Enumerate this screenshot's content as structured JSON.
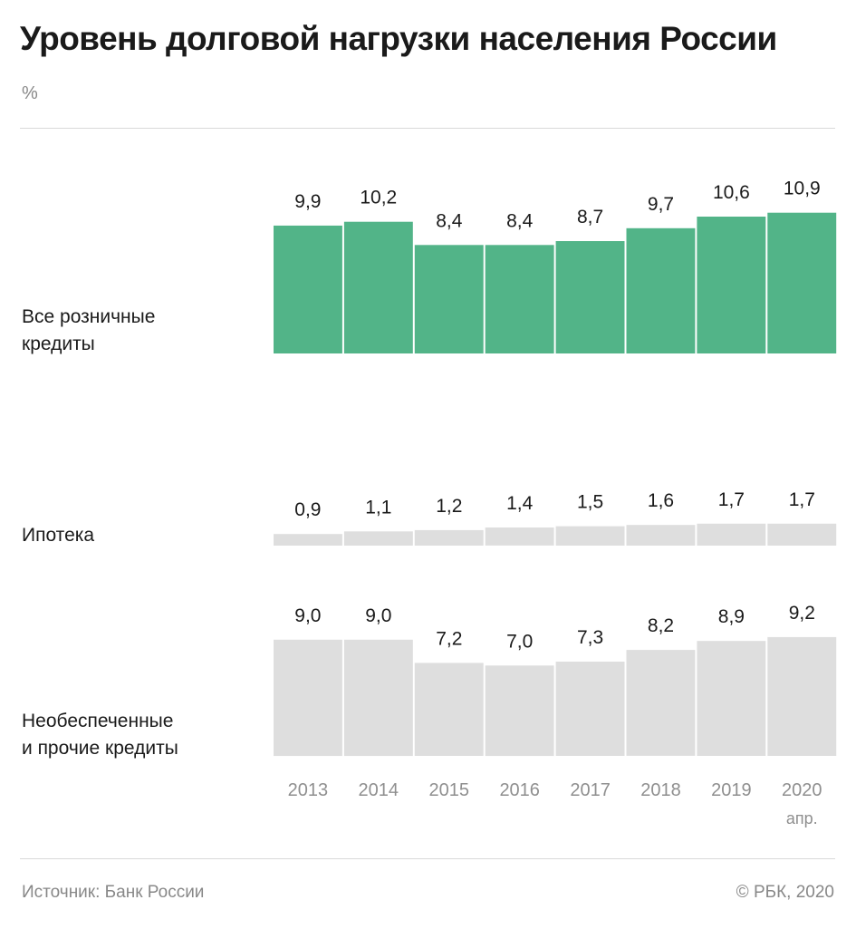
{
  "title": "Уровень долговой нагрузки населения России",
  "unit": "%",
  "source": "Источник: Банк России",
  "copyright": "© РБК, 2020",
  "colors": {
    "retail": "#52b488",
    "other": "#dedede",
    "year_label": "#8f8f8f"
  },
  "chart_data": {
    "type": "bar",
    "categories": [
      "2013",
      "2014",
      "2015",
      "2016",
      "2017",
      "2018",
      "2019",
      "2020"
    ],
    "category_sublabels": [
      "",
      "",
      "",
      "",
      "",
      "",
      "",
      "апр."
    ],
    "series": [
      {
        "name": "Все розничные кредиты",
        "name_lines": [
          "Все розничные",
          "кредиты"
        ],
        "values": [
          9.9,
          10.2,
          8.4,
          8.4,
          8.7,
          9.7,
          10.6,
          10.9
        ],
        "labels": [
          "9,9",
          "10,2",
          "8,4",
          "8,4",
          "8,7",
          "9,7",
          "10,6",
          "10,9"
        ]
      },
      {
        "name": "Ипотека",
        "name_lines": [
          "Ипотека"
        ],
        "values": [
          0.9,
          1.1,
          1.2,
          1.4,
          1.5,
          1.6,
          1.7,
          1.7
        ],
        "labels": [
          "0,9",
          "1,1",
          "1,2",
          "1,4",
          "1,5",
          "1,6",
          "1,7",
          "1,7"
        ]
      },
      {
        "name": "Необеспеченные и прочие кредиты",
        "name_lines": [
          "Необеспеченные",
          "и прочие кредиты"
        ],
        "values": [
          9.0,
          9.0,
          7.2,
          7.0,
          7.3,
          8.2,
          8.9,
          9.2
        ],
        "labels": [
          "9,0",
          "9,0",
          "7,2",
          "7,0",
          "7,3",
          "8,2",
          "8,9",
          "9,2"
        ]
      }
    ]
  }
}
